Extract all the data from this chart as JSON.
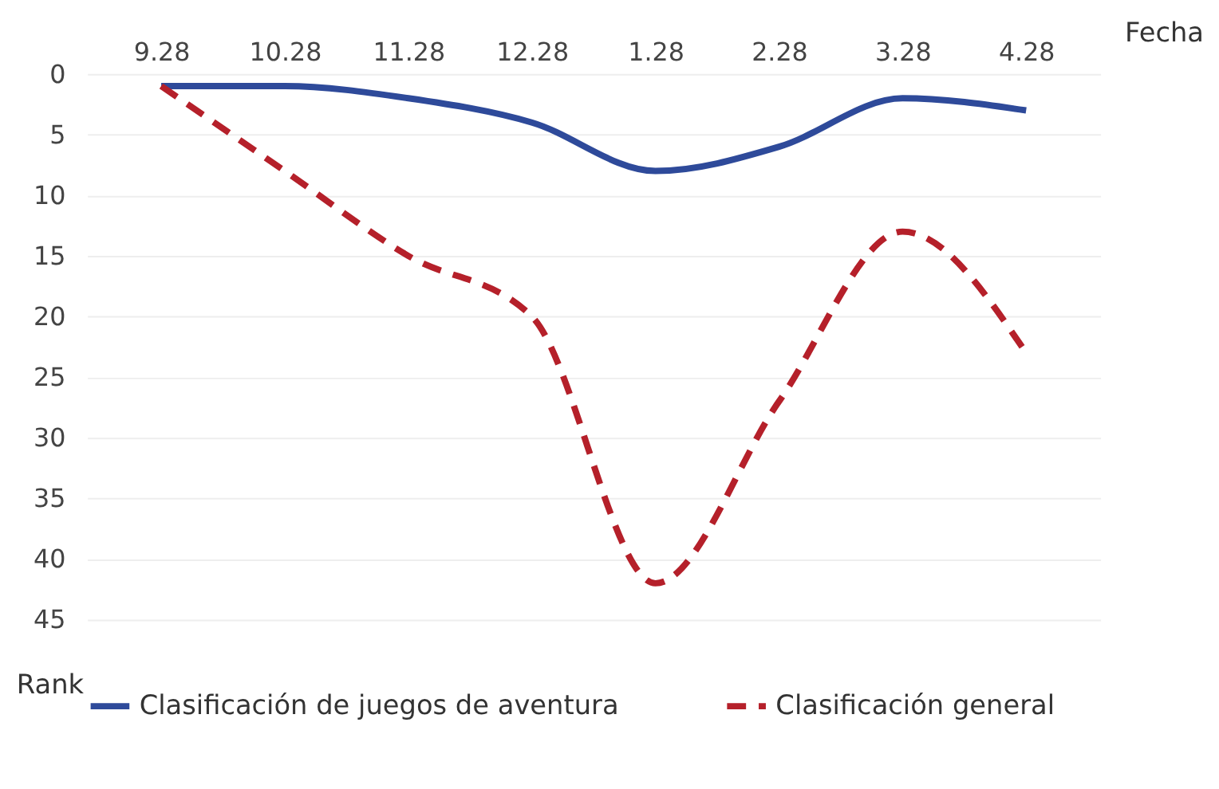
{
  "chart_data": {
    "type": "line",
    "xlabel": "Fecha",
    "ylabel": "Rank",
    "categories": [
      "9.28",
      "10.28",
      "11.28",
      "12.28",
      "1.28",
      "2.28",
      "3.28",
      "4.28"
    ],
    "series": [
      {
        "name": "Clasificación de juegos de aventura",
        "color": "#2e4a9a",
        "line_style": "solid",
        "values": [
          1,
          1,
          2,
          4,
          8,
          6,
          2,
          3
        ]
      },
      {
        "name": "Clasificación general",
        "color": "#b5202a",
        "line_style": "dashed",
        "values": [
          1,
          8,
          15,
          20,
          42,
          27,
          13,
          23
        ]
      }
    ],
    "ylim": [
      45,
      0
    ],
    "yticks": [
      0,
      5,
      10,
      15,
      20,
      25,
      30,
      35,
      40,
      45
    ],
    "grid": "y",
    "legend": "bottom",
    "marker": "none"
  }
}
